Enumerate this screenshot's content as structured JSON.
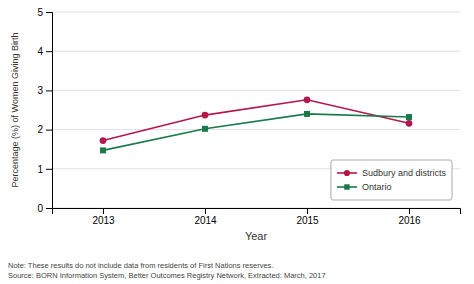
{
  "chart_data": {
    "type": "line",
    "x_label": "Year",
    "y_label": "Percentage (%) of Women Giving Birth",
    "x": [
      2013,
      2014,
      2015,
      2016
    ],
    "xlim": [
      2012.5,
      2016.5
    ],
    "xticks": [
      2013,
      2014,
      2015,
      2016
    ],
    "ylim": [
      0,
      5
    ],
    "yticks": [
      0,
      1,
      2,
      3,
      4,
      5
    ],
    "grid": true,
    "legend": "lower right",
    "annotations": [
      "Note: These results do not include data from residents of First Nations reserves.",
      "Source: BORN Information System, Better Outcomes Registry Network, Extracted: March, 2017"
    ],
    "series": [
      {
        "name": "Sudbury and districts",
        "color": "#b5174b",
        "marker": "circle",
        "values": [
          1.72,
          2.37,
          2.76,
          2.16
        ]
      },
      {
        "name": "Ontario",
        "color": "#1a7a4a",
        "marker": "square",
        "values": [
          1.47,
          2.02,
          2.4,
          2.32
        ]
      }
    ]
  }
}
